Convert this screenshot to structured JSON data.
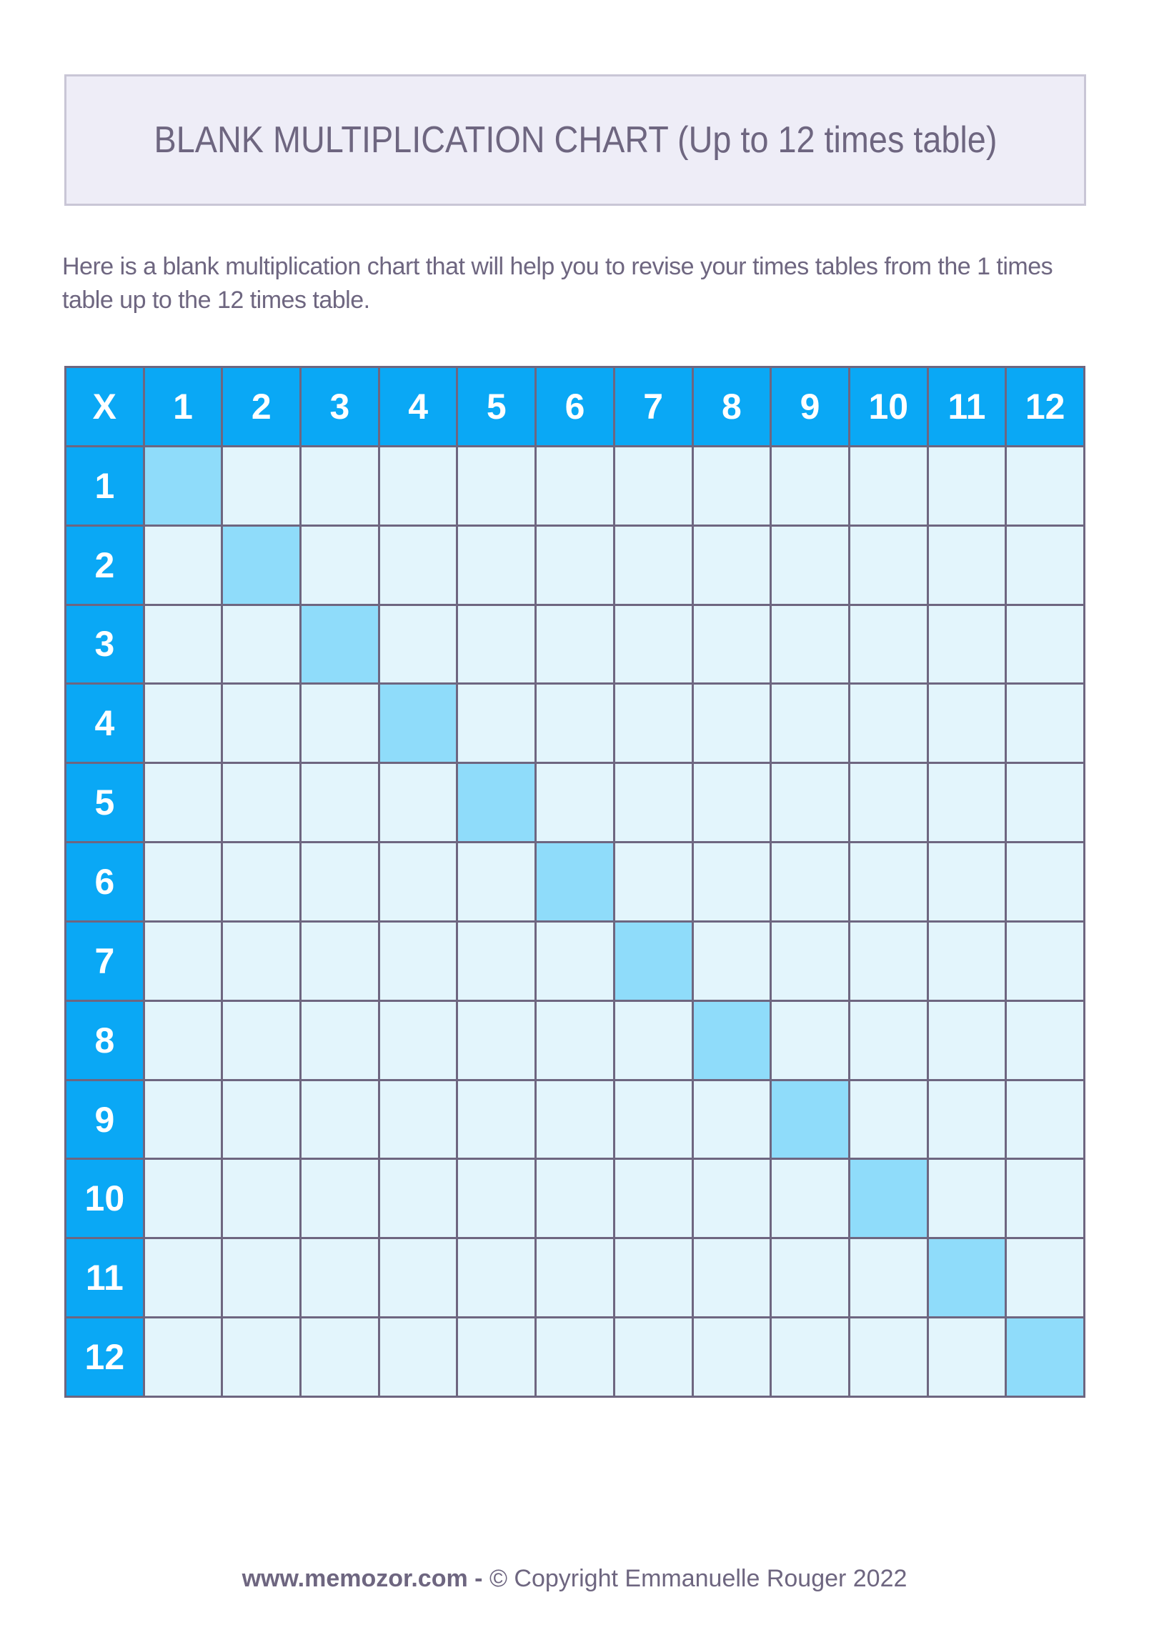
{
  "header": {
    "title": "BLANK MULTIPLICATION CHART (Up to 12 times table)"
  },
  "intro": "Here is a blank multiplication chart that will help you to revise your times tables from the 1 times table up to the 12 times table.",
  "table": {
    "corner": "X",
    "columns": [
      "1",
      "2",
      "3",
      "4",
      "5",
      "6",
      "7",
      "8",
      "9",
      "10",
      "11",
      "12"
    ],
    "rows": [
      "1",
      "2",
      "3",
      "4",
      "5",
      "6",
      "7",
      "8",
      "9",
      "10",
      "11",
      "12"
    ]
  },
  "footer": {
    "site": "www.memozor.com -",
    "copyright": "© Copyright Emmanuelle Rouger 2022"
  }
}
